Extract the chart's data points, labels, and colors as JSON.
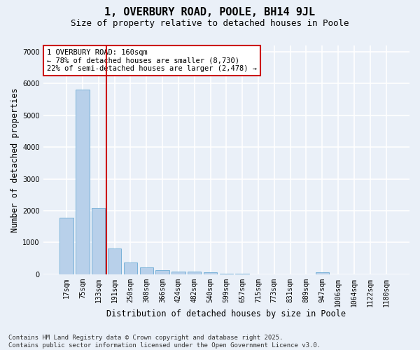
{
  "title": "1, OVERBURY ROAD, POOLE, BH14 9JL",
  "subtitle": "Size of property relative to detached houses in Poole",
  "xlabel": "Distribution of detached houses by size in Poole",
  "ylabel": "Number of detached properties",
  "categories": [
    "17sqm",
    "75sqm",
    "133sqm",
    "191sqm",
    "250sqm",
    "308sqm",
    "366sqm",
    "424sqm",
    "482sqm",
    "540sqm",
    "599sqm",
    "657sqm",
    "715sqm",
    "773sqm",
    "831sqm",
    "889sqm",
    "947sqm",
    "1006sqm",
    "1064sqm",
    "1122sqm",
    "1180sqm"
  ],
  "values": [
    1780,
    5820,
    2090,
    820,
    370,
    215,
    125,
    90,
    75,
    55,
    20,
    10,
    5,
    3,
    2,
    2,
    65,
    1,
    1,
    1,
    1
  ],
  "bar_color": "#b8d0ea",
  "bar_edge_color": "#6aaad4",
  "vline_x": 2.5,
  "vline_color": "#cc0000",
  "annotation_text": "1 OVERBURY ROAD: 160sqm\n← 78% of detached houses are smaller (8,730)\n22% of semi-detached houses are larger (2,478) →",
  "annotation_box_color": "#ffffff",
  "annotation_box_edge_color": "#cc0000",
  "ylim": [
    0,
    7200
  ],
  "yticks": [
    0,
    1000,
    2000,
    3000,
    4000,
    5000,
    6000,
    7000
  ],
  "background_color": "#eaf0f8",
  "grid_color": "#ffffff",
  "footer_line1": "Contains HM Land Registry data © Crown copyright and database right 2025.",
  "footer_line2": "Contains public sector information licensed under the Open Government Licence v3.0.",
  "title_fontsize": 11,
  "subtitle_fontsize": 9,
  "axis_label_fontsize": 8.5,
  "tick_fontsize": 7,
  "annotation_fontsize": 7.5,
  "footer_fontsize": 6.5
}
